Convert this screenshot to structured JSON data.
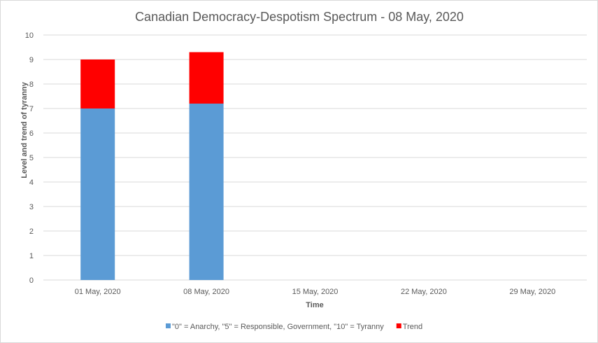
{
  "chart_data": {
    "type": "bar",
    "stacked": true,
    "title": "Canadian Democracy-Despotism Spectrum - 08 May, 2020",
    "xlabel": "Time",
    "ylabel": "Level and trend of tyranny",
    "ylim": [
      0,
      10
    ],
    "yticks": [
      "0",
      "1",
      "2",
      "3",
      "4",
      "5",
      "6",
      "7",
      "8",
      "9",
      "10"
    ],
    "categories": [
      "01 May, 2020",
      "08 May, 2020",
      "15 May, 2020",
      "22 May, 2020",
      "29 May, 2020"
    ],
    "series": [
      {
        "name": "\"0\" = Anarchy, \"5\" = Responsible, Government, \"10\" = Tyranny",
        "color": "#5b9bd5",
        "values": [
          7.0,
          7.2,
          null,
          null,
          null
        ]
      },
      {
        "name": "Trend",
        "color": "#ff0000",
        "values": [
          2.0,
          2.1,
          null,
          null,
          null
        ]
      }
    ],
    "grid": true,
    "legend_position": "bottom"
  }
}
